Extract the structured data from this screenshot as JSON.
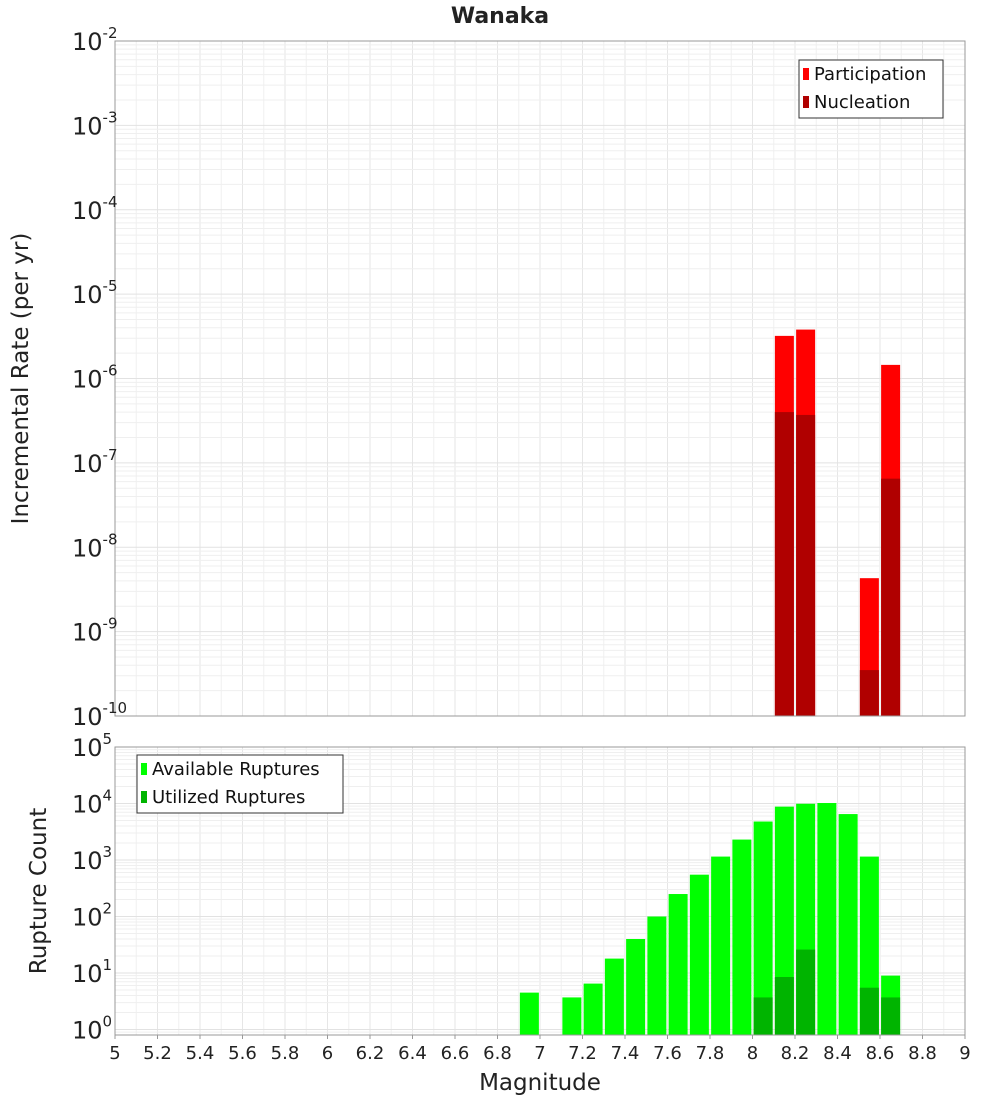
{
  "chart_data": [
    {
      "type": "bar",
      "title": "Wanaka",
      "ylabel": "Incremental Rate (per yr)",
      "xlabel": "",
      "xlim": [
        5,
        9
      ],
      "ylim": [
        1e-10,
        0.01
      ],
      "yscale": "log",
      "yticks": [
        {
          "base": "10",
          "exp": "-10",
          "value": 1e-10
        },
        {
          "base": "10",
          "exp": "-9",
          "value": 1e-09
        },
        {
          "base": "10",
          "exp": "-8",
          "value": 1e-08
        },
        {
          "base": "10",
          "exp": "-7",
          "value": 1e-07
        },
        {
          "base": "10",
          "exp": "-6",
          "value": 1e-06
        },
        {
          "base": "10",
          "exp": "-5",
          "value": 1e-05
        },
        {
          "base": "10",
          "exp": "-4",
          "value": 0.0001
        },
        {
          "base": "10",
          "exp": "-3",
          "value": 0.001
        },
        {
          "base": "10",
          "exp": "-2",
          "value": 0.01
        }
      ],
      "grid": true,
      "legend_position": "top-right",
      "series": [
        {
          "name": "Participation",
          "color": "#ff0000",
          "x": [
            8.15,
            8.25,
            8.55,
            8.65
          ],
          "values": [
            3.2e-06,
            3.8e-06,
            4.3e-09,
            1.45e-06
          ]
        },
        {
          "name": "Nucleation",
          "color": "#b00000",
          "x": [
            8.15,
            8.25,
            8.55,
            8.65
          ],
          "values": [
            4e-07,
            3.7e-07,
            3.5e-10,
            6.5e-08
          ]
        }
      ]
    },
    {
      "type": "bar",
      "title": "",
      "ylabel": "Rupture Count",
      "xlabel": "Magnitude",
      "xlim": [
        5,
        9
      ],
      "ylim": [
        0.8,
        100000
      ],
      "yscale": "log",
      "xticks": [
        "5",
        "5.2",
        "5.4",
        "5.6",
        "5.8",
        "6",
        "6.2",
        "6.4",
        "6.6",
        "6.8",
        "7",
        "7.2",
        "7.4",
        "7.6",
        "7.8",
        "8",
        "8.2",
        "8.4",
        "8.6",
        "8.8",
        "9"
      ],
      "yticks": [
        {
          "base": "10",
          "exp": "0",
          "value": 1
        },
        {
          "base": "10",
          "exp": "1",
          "value": 10
        },
        {
          "base": "10",
          "exp": "2",
          "value": 100
        },
        {
          "base": "10",
          "exp": "3",
          "value": 1000
        },
        {
          "base": "10",
          "exp": "4",
          "value": 10000
        },
        {
          "base": "10",
          "exp": "5",
          "value": 100000
        }
      ],
      "grid": true,
      "legend_position": "top-left",
      "series": [
        {
          "name": "Available Ruptures",
          "color": "#00ff00",
          "x": [
            6.95,
            7.15,
            7.25,
            7.35,
            7.45,
            7.55,
            7.65,
            7.75,
            7.85,
            7.95,
            8.05,
            8.15,
            8.25,
            8.35,
            8.45,
            8.55,
            8.65
          ],
          "values": [
            4.5,
            3.7,
            6.5,
            18,
            40,
            100,
            250,
            550,
            1150,
            2300,
            4800,
            8800,
            9900,
            10200,
            6500,
            1150,
            9
          ]
        },
        {
          "name": "Utilized Ruptures",
          "color": "#00b400",
          "x": [
            8.05,
            8.15,
            8.25,
            8.55,
            8.65
          ],
          "values": [
            3.7,
            8.5,
            26,
            5.5,
            3.7
          ]
        }
      ]
    }
  ]
}
